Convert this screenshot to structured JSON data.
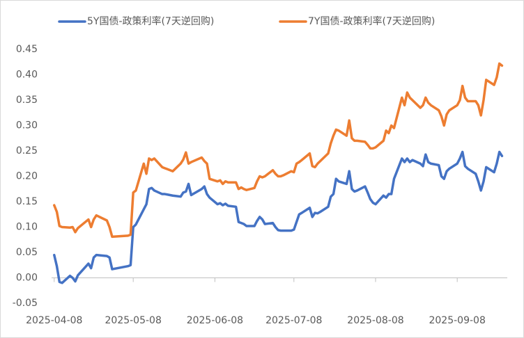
{
  "chart_data": {
    "type": "line",
    "x": [
      "2025-04-08",
      "2025-04-09",
      "2025-04-10",
      "2025-04-11",
      "2025-04-14",
      "2025-04-15",
      "2025-04-16",
      "2025-04-17",
      "2025-04-21",
      "2025-04-22",
      "2025-04-23",
      "2025-04-24",
      "2025-04-28",
      "2025-04-29",
      "2025-04-30",
      "2025-05-06",
      "2025-05-07",
      "2025-05-08",
      "2025-05-09",
      "2025-05-12",
      "2025-05-13",
      "2025-05-14",
      "2025-05-15",
      "2025-05-16",
      "2025-05-19",
      "2025-05-20",
      "2025-05-21",
      "2025-05-22",
      "2025-05-23",
      "2025-05-26",
      "2025-05-27",
      "2025-05-28",
      "2025-05-29",
      "2025-05-30",
      "2025-06-03",
      "2025-06-04",
      "2025-06-05",
      "2025-06-06",
      "2025-06-09",
      "2025-06-10",
      "2025-06-11",
      "2025-06-12",
      "2025-06-13",
      "2025-06-16",
      "2025-06-17",
      "2025-06-18",
      "2025-06-19",
      "2025-06-20",
      "2025-06-23",
      "2025-06-24",
      "2025-06-25",
      "2025-06-26",
      "2025-06-27",
      "2025-06-30",
      "2025-07-01",
      "2025-07-02",
      "2025-07-03",
      "2025-07-04",
      "2025-07-07",
      "2025-07-08",
      "2025-07-09",
      "2025-07-10",
      "2025-07-11",
      "2025-07-14",
      "2025-07-15",
      "2025-07-16",
      "2025-07-17",
      "2025-07-18",
      "2025-07-21",
      "2025-07-22",
      "2025-07-23",
      "2025-07-24",
      "2025-07-25",
      "2025-07-28",
      "2025-07-29",
      "2025-07-30",
      "2025-07-31",
      "2025-08-01",
      "2025-08-04",
      "2025-08-05",
      "2025-08-06",
      "2025-08-07",
      "2025-08-08",
      "2025-08-11",
      "2025-08-12",
      "2025-08-13",
      "2025-08-14",
      "2025-08-15",
      "2025-08-18",
      "2025-08-19",
      "2025-08-20",
      "2025-08-21",
      "2025-08-22",
      "2025-08-25",
      "2025-08-26",
      "2025-08-27",
      "2025-08-28",
      "2025-08-29",
      "2025-09-01",
      "2025-09-02",
      "2025-09-03",
      "2025-09-04",
      "2025-09-05",
      "2025-09-08",
      "2025-09-09",
      "2025-09-10",
      "2025-09-11",
      "2025-09-12",
      "2025-09-15",
      "2025-09-16",
      "2025-09-17",
      "2025-09-18",
      "2025-09-19",
      "2025-09-22",
      "2025-09-23",
      "2025-09-24",
      "2025-09-25"
    ],
    "series": [
      {
        "name": "5Y国债-政策利率(7天逆回购)",
        "color": "#4472C4",
        "values": [
          0.045,
          0.023,
          -0.008,
          -0.01,
          0.004,
          0,
          -0.007,
          0.005,
          0.028,
          0.019,
          0.04,
          0.045,
          0.043,
          0.04,
          0.017,
          0.023,
          0.025,
          0.1,
          0.105,
          0.135,
          0.145,
          0.175,
          0.177,
          0.172,
          0.165,
          0.165,
          0.164,
          0.163,
          0.162,
          0.16,
          0.168,
          0.17,
          0.185,
          0.163,
          0.175,
          0.18,
          0.165,
          0.158,
          0.145,
          0.147,
          0.143,
          0.146,
          0.142,
          0.14,
          0.11,
          0.108,
          0.106,
          0.102,
          0.102,
          0.112,
          0.12,
          0.115,
          0.106,
          0.108,
          0.1,
          0.094,
          0.093,
          0.093,
          0.093,
          0.095,
          0.11,
          0.125,
          0.128,
          0.138,
          0.12,
          0.128,
          0.127,
          0.13,
          0.14,
          0.16,
          0.165,
          0.195,
          0.19,
          0.185,
          0.21,
          0.175,
          0.17,
          0.172,
          0.18,
          0.168,
          0.155,
          0.148,
          0.145,
          0.162,
          0.158,
          0.165,
          0.165,
          0.195,
          0.235,
          0.228,
          0.235,
          0.228,
          0.232,
          0.225,
          0.22,
          0.243,
          0.228,
          0.225,
          0.222,
          0.2,
          0.195,
          0.21,
          0.215,
          0.225,
          0.235,
          0.248,
          0.22,
          0.215,
          0.205,
          0.19,
          0.172,
          0.19,
          0.218,
          0.208,
          0.225,
          0.248,
          0.24
        ]
      },
      {
        "name": "7Y国债-政策利率(7天逆回购)",
        "color": "#ED7D31",
        "values": [
          0.143,
          0.13,
          0.102,
          0.1,
          0.099,
          0.1,
          0.09,
          0.098,
          0.115,
          0.1,
          0.115,
          0.123,
          0.113,
          0.1,
          0.081,
          0.083,
          0.085,
          0.168,
          0.172,
          0.225,
          0.205,
          0.235,
          0.232,
          0.235,
          0.218,
          0.216,
          0.214,
          0.212,
          0.21,
          0.225,
          0.233,
          0.247,
          0.225,
          0.228,
          0.237,
          0.23,
          0.225,
          0.195,
          0.19,
          0.192,
          0.185,
          0.19,
          0.188,
          0.188,
          0.175,
          0.178,
          0.175,
          0.173,
          0.177,
          0.19,
          0.2,
          0.198,
          0.2,
          0.212,
          0.205,
          0.2,
          0.2,
          0.202,
          0.21,
          0.208,
          0.225,
          0.228,
          0.232,
          0.245,
          0.22,
          0.218,
          0.225,
          0.23,
          0.245,
          0.265,
          0.28,
          0.292,
          0.29,
          0.28,
          0.31,
          0.275,
          0.27,
          0.27,
          0.268,
          0.262,
          0.255,
          0.255,
          0.257,
          0.27,
          0.29,
          0.285,
          0.3,
          0.295,
          0.355,
          0.34,
          0.365,
          0.355,
          0.35,
          0.335,
          0.34,
          0.355,
          0.345,
          0.34,
          0.33,
          0.318,
          0.3,
          0.322,
          0.33,
          0.34,
          0.35,
          0.378,
          0.355,
          0.348,
          0.348,
          0.34,
          0.32,
          0.35,
          0.39,
          0.38,
          0.395,
          0.422,
          0.418
        ]
      }
    ],
    "xlim": [
      "2025-04-07",
      "2025-09-27"
    ],
    "xticks": [
      "2025-04-08",
      "2025-05-08",
      "2025-06-08",
      "2025-07-08",
      "2025-08-08",
      "2025-09-08"
    ],
    "ylim": [
      -0.05,
      0.45
    ],
    "yticks": [
      {
        "value": -0.05,
        "label": "-0.05"
      },
      {
        "value": 0,
        "label": "0.00"
      },
      {
        "value": 0.05,
        "label": "0.05"
      },
      {
        "value": 0.1,
        "label": "0.10"
      },
      {
        "value": 0.15,
        "label": "0.15"
      },
      {
        "value": 0.2,
        "label": "0.20"
      },
      {
        "value": 0.25,
        "label": "0.25"
      },
      {
        "value": 0.3,
        "label": "0.30"
      },
      {
        "value": 0.35,
        "label": "0.35"
      },
      {
        "value": 0.4,
        "label": "0.40"
      },
      {
        "value": 0.45,
        "label": "0.45"
      }
    ],
    "grid": false,
    "legend": "top"
  }
}
